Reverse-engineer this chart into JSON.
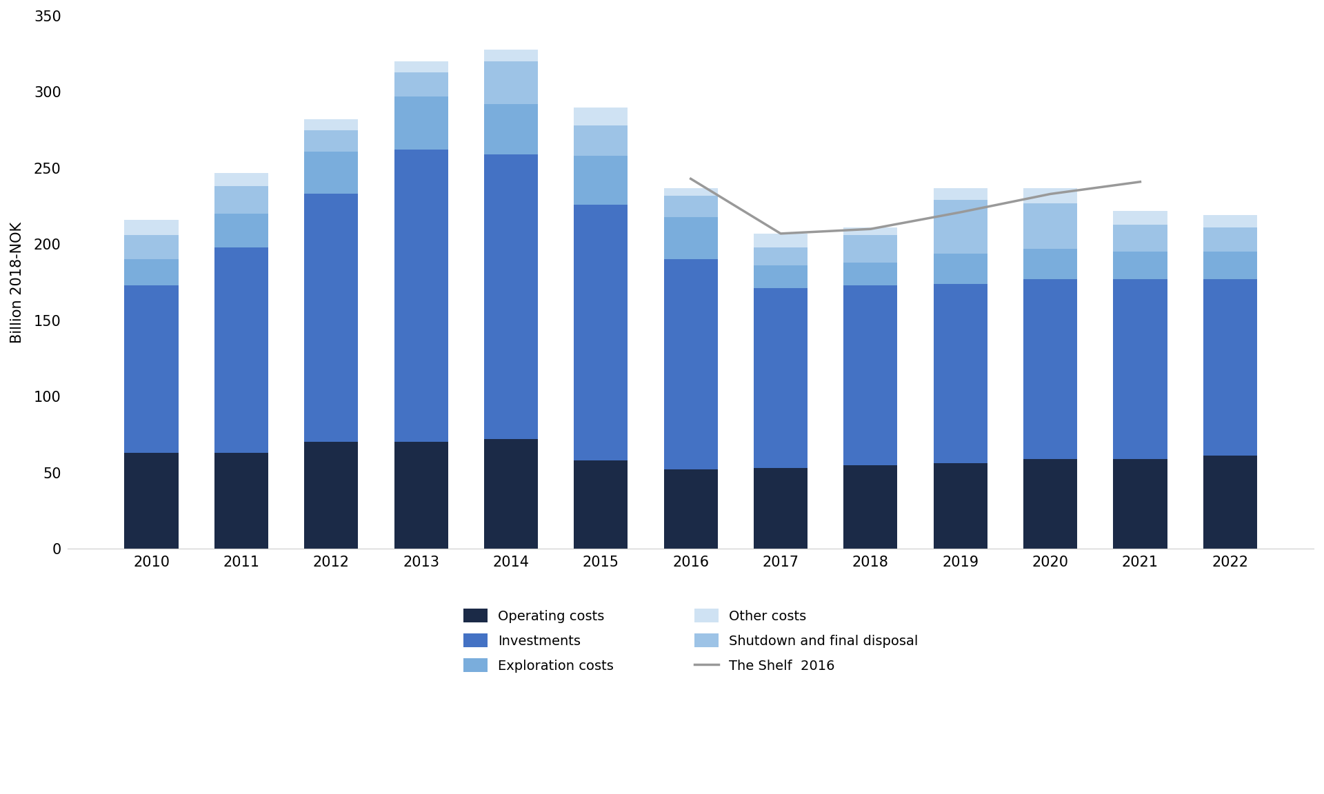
{
  "years": [
    2010,
    2011,
    2012,
    2013,
    2014,
    2015,
    2016,
    2017,
    2018,
    2019,
    2020,
    2021,
    2022
  ],
  "operating_costs": [
    63,
    63,
    70,
    70,
    72,
    58,
    52,
    53,
    55,
    56,
    59,
    59,
    61
  ],
  "investments": [
    110,
    135,
    163,
    192,
    187,
    168,
    138,
    118,
    118,
    118,
    118,
    118,
    116
  ],
  "exploration_costs": [
    17,
    22,
    28,
    35,
    33,
    32,
    28,
    15,
    15,
    20,
    20,
    18,
    18
  ],
  "shutdown": [
    16,
    18,
    14,
    16,
    28,
    20,
    14,
    12,
    18,
    35,
    30,
    18,
    16
  ],
  "other_costs": [
    10,
    9,
    7,
    7,
    8,
    12,
    5,
    9,
    5,
    8,
    10,
    9,
    8
  ],
  "shelf_2016": [
    243,
    207,
    210,
    221,
    233,
    241
  ],
  "shelf_2016_years": [
    2016,
    2017,
    2018,
    2019,
    2020,
    2021
  ],
  "colors": {
    "operating_costs": "#1b2a47",
    "investments": "#4472c4",
    "exploration_costs": "#7aaddc",
    "shutdown": "#9dc3e6",
    "other_costs": "#cfe2f3"
  },
  "line_color": "#999999",
  "ylabel": "Billion 2018-NOK",
  "ylim": [
    0,
    350
  ],
  "yticks": [
    0,
    50,
    100,
    150,
    200,
    250,
    300,
    350
  ],
  "background_color": "#ffffff"
}
